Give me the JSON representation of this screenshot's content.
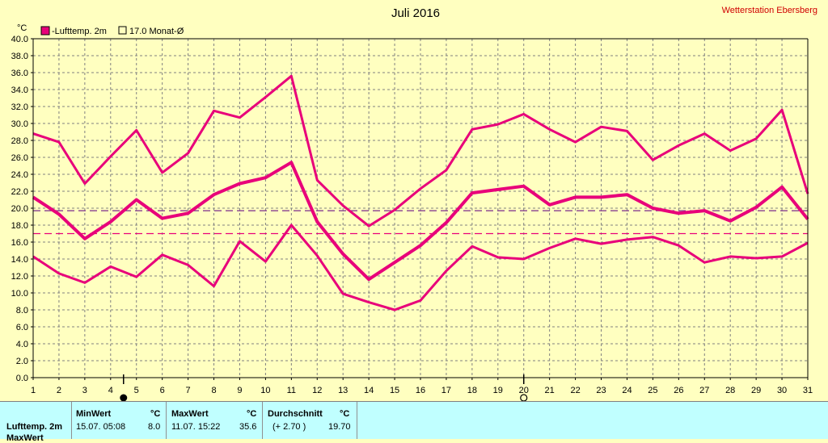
{
  "station": "Wetterstation Ebersberg",
  "chart_data": {
    "type": "line",
    "title": "Juli 2016",
    "ylabel": "°C",
    "ylim": [
      0,
      40
    ],
    "y_tick_step": 2,
    "y_tick_labels": [
      "0.0",
      "2.0",
      "4.0",
      "6.0",
      "8.0",
      "10.0",
      "12.0",
      "14.0",
      "16.0",
      "18.0",
      "20.0",
      "22.0",
      "24.0",
      "26.0",
      "28.0",
      "30.0",
      "32.0",
      "34.0",
      "36.0",
      "38.0",
      "40.0"
    ],
    "x": [
      1,
      2,
      3,
      4,
      5,
      6,
      7,
      8,
      9,
      10,
      11,
      12,
      13,
      14,
      15,
      16,
      17,
      18,
      19,
      20,
      21,
      22,
      23,
      24,
      25,
      26,
      27,
      28,
      29,
      30,
      31
    ],
    "x_tick_labels": [
      "1",
      "2",
      "3",
      "4",
      "5",
      "6",
      "7",
      "8",
      "9",
      "10",
      "11",
      "12",
      "13",
      "14",
      "15",
      "16",
      "17",
      "18",
      "19",
      "20",
      "21",
      "22",
      "23",
      "24",
      "25",
      "26",
      "27",
      "28",
      "29",
      "30",
      "31"
    ],
    "grid": true,
    "legend": [
      {
        "label": "-Lufttemp. 2m",
        "filled": true
      },
      {
        "label": "17.0 Monat-Ø",
        "filled": false
      }
    ],
    "series": [
      {
        "role": "max",
        "color": "#e8007a",
        "values": [
          28.8,
          27.8,
          22.9,
          26.1,
          29.2,
          24.2,
          26.5,
          31.5,
          30.7,
          33.1,
          35.6,
          23.3,
          20.3,
          17.9,
          19.8,
          22.3,
          24.5,
          29.3,
          29.9,
          31.1,
          29.3,
          27.8,
          29.6,
          29.1,
          25.7,
          27.4,
          28.8,
          26.8,
          28.2,
          31.6,
          21.7
        ]
      },
      {
        "role": "mean",
        "color": "#e8007a",
        "values": [
          21.3,
          19.3,
          16.4,
          18.4,
          21.0,
          18.8,
          19.4,
          21.6,
          22.9,
          23.6,
          25.4,
          18.4,
          14.6,
          11.6,
          13.6,
          15.6,
          18.3,
          21.8,
          22.2,
          22.6,
          20.4,
          21.3,
          21.3,
          21.6,
          20.0,
          19.4,
          19.7,
          18.5,
          20.1,
          22.5,
          18.7
        ]
      },
      {
        "role": "min",
        "color": "#e8007a",
        "values": [
          14.3,
          12.3,
          11.2,
          13.1,
          11.9,
          14.5,
          13.3,
          10.8,
          16.1,
          13.7,
          18.0,
          14.4,
          9.9,
          8.9,
          8.0,
          9.1,
          12.6,
          15.5,
          14.2,
          14.0,
          15.3,
          16.4,
          15.8,
          16.3,
          16.6,
          15.6,
          13.6,
          14.3,
          14.1,
          14.3,
          15.9
        ]
      }
    ],
    "reference_lines": [
      {
        "value": 17.0,
        "color": "#e8007a",
        "dashed": true
      },
      {
        "value": 19.7,
        "color": "#7a2a8a",
        "dashed": true
      }
    ],
    "markers": [
      {
        "x": 4.5,
        "shape": "filled-circle"
      },
      {
        "x": 20,
        "shape": "open-circle"
      }
    ]
  },
  "stats": {
    "row_label": "Lufttemp. 2m",
    "row_label_2": "MaxWert",
    "min_header": "MinWert",
    "max_header": "MaxWert",
    "avg_header": "Durchschnitt",
    "unit": "°C",
    "min_time": "15.07.  05:08",
    "min_value": "8.0",
    "max_time": "11.07.  15:22",
    "max_value": "35.6",
    "avg_delta": "(+ 2.70 )",
    "avg_value": "19.70"
  }
}
